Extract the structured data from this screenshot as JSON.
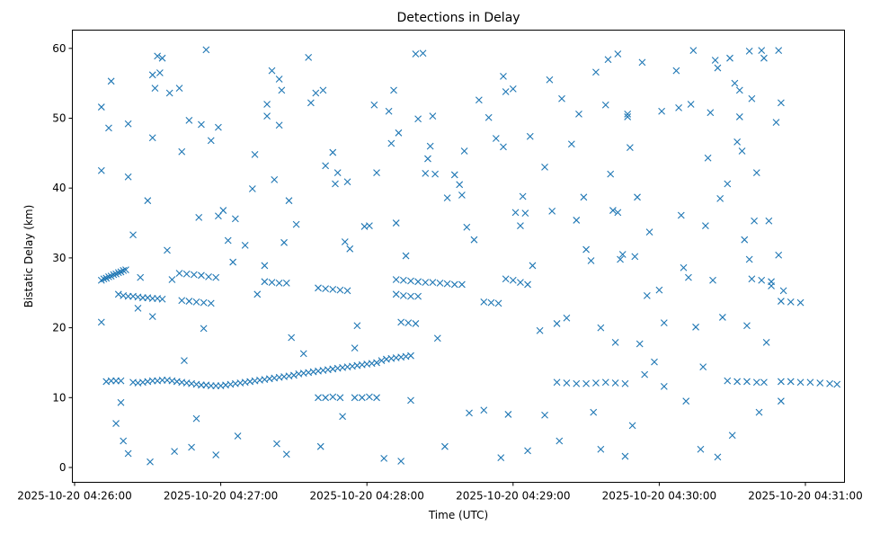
{
  "chart_data": {
    "type": "scatter",
    "title": "Detections in Delay",
    "xlabel": "Time (UTC)",
    "ylabel": "Bistatic Delay (km)",
    "x_unit": "seconds after 2025-10-20 04:26:00",
    "xlim": [
      -1,
      320
    ],
    "ylim": [
      -2.2,
      62.5
    ],
    "grid": false,
    "marker": "x",
    "color": "#1f77b4",
    "x_ticks": [
      {
        "value": 0,
        "label": "2025-10-20 04:26:00"
      },
      {
        "value": 60,
        "label": "2025-10-20 04:27:00"
      },
      {
        "value": 120,
        "label": "2025-10-20 04:28:00"
      },
      {
        "value": 180,
        "label": "2025-10-20 04:29:00"
      },
      {
        "value": 240,
        "label": "2025-10-20 04:30:00"
      },
      {
        "value": 300,
        "label": "2025-10-20 04:31:00"
      }
    ],
    "y_ticks": [
      {
        "value": 0,
        "label": "0"
      },
      {
        "value": 10,
        "label": "10"
      },
      {
        "value": 20,
        "label": "20"
      },
      {
        "value": 30,
        "label": "30"
      },
      {
        "value": 40,
        "label": "40"
      },
      {
        "value": 50,
        "label": "50"
      },
      {
        "value": 60,
        "label": "60"
      }
    ],
    "points": [
      [
        11,
        26.8
      ],
      [
        12,
        27
      ],
      [
        13,
        27.1
      ],
      [
        14,
        27.3
      ],
      [
        15,
        27.4
      ],
      [
        16,
        27.6
      ],
      [
        17,
        27.7
      ],
      [
        18,
        27.9
      ],
      [
        19,
        28
      ],
      [
        20,
        28.2
      ],
      [
        21,
        28.3
      ],
      [
        18,
        24.8
      ],
      [
        20,
        24.6
      ],
      [
        22,
        24.5
      ],
      [
        24,
        24.5
      ],
      [
        26,
        24.4
      ],
      [
        28,
        24.3
      ],
      [
        30,
        24.3
      ],
      [
        32,
        24.2
      ],
      [
        34,
        24.2
      ],
      [
        36,
        24.1
      ],
      [
        13,
        12.3
      ],
      [
        15,
        12.4
      ],
      [
        17,
        12.4
      ],
      [
        19,
        12.4
      ],
      [
        24,
        12.2
      ],
      [
        26,
        12.1
      ],
      [
        28,
        12.2
      ],
      [
        30,
        12.3
      ],
      [
        32,
        12.4
      ],
      [
        34,
        12.4
      ],
      [
        36,
        12.5
      ],
      [
        38,
        12.5
      ],
      [
        40,
        12.4
      ],
      [
        42,
        12.3
      ],
      [
        44,
        12.2
      ],
      [
        46,
        12.1
      ],
      [
        48,
        12
      ],
      [
        50,
        11.9
      ],
      [
        52,
        11.8
      ],
      [
        54,
        11.8
      ],
      [
        56,
        11.7
      ],
      [
        58,
        11.7
      ],
      [
        60,
        11.7
      ],
      [
        62,
        11.8
      ],
      [
        64,
        11.9
      ],
      [
        66,
        12
      ],
      [
        68,
        12.1
      ],
      [
        70,
        12.2
      ],
      [
        72,
        12.3
      ],
      [
        74,
        12.4
      ],
      [
        76,
        12.5
      ],
      [
        78,
        12.6
      ],
      [
        80,
        12.7
      ],
      [
        82,
        12.8
      ],
      [
        84,
        12.9
      ],
      [
        86,
        13
      ],
      [
        88,
        13.1
      ],
      [
        90,
        13.2
      ],
      [
        92,
        13.4
      ],
      [
        94,
        13.5
      ],
      [
        96,
        13.6
      ],
      [
        98,
        13.7
      ],
      [
        100,
        13.8
      ],
      [
        102,
        13.9
      ],
      [
        104,
        14
      ],
      [
        106,
        14.1
      ],
      [
        108,
        14.2
      ],
      [
        110,
        14.3
      ],
      [
        112,
        14.4
      ],
      [
        114,
        14.5
      ],
      [
        116,
        14.6
      ],
      [
        118,
        14.7
      ],
      [
        120,
        14.8
      ],
      [
        122,
        14.9
      ],
      [
        124,
        15
      ],
      [
        126,
        15.3
      ],
      [
        128,
        15.5
      ],
      [
        130,
        15.6
      ],
      [
        132,
        15.7
      ],
      [
        134,
        15.8
      ],
      [
        136,
        15.9
      ],
      [
        138,
        16
      ],
      [
        43,
        27.8
      ],
      [
        46,
        27.7
      ],
      [
        49,
        27.6
      ],
      [
        52,
        27.5
      ],
      [
        55,
        27.3
      ],
      [
        58,
        27.2
      ],
      [
        44,
        23.9
      ],
      [
        47,
        23.8
      ],
      [
        50,
        23.7
      ],
      [
        53,
        23.6
      ],
      [
        56,
        23.5
      ],
      [
        78,
        26.6
      ],
      [
        81,
        26.5
      ],
      [
        84,
        26.4
      ],
      [
        87,
        26.4
      ],
      [
        100,
        25.7
      ],
      [
        103,
        25.6
      ],
      [
        106,
        25.5
      ],
      [
        109,
        25.4
      ],
      [
        112,
        25.3
      ],
      [
        100,
        10
      ],
      [
        103,
        10
      ],
      [
        106,
        10.1
      ],
      [
        109,
        10
      ],
      [
        115,
        10
      ],
      [
        118,
        10
      ],
      [
        121,
        10.1
      ],
      [
        124,
        10
      ],
      [
        132,
        26.9
      ],
      [
        135,
        26.8
      ],
      [
        138,
        26.7
      ],
      [
        141,
        26.6
      ],
      [
        144,
        26.5
      ],
      [
        147,
        26.5
      ],
      [
        150,
        26.4
      ],
      [
        153,
        26.3
      ],
      [
        156,
        26.2
      ],
      [
        159,
        26.2
      ],
      [
        132,
        24.8
      ],
      [
        135,
        24.6
      ],
      [
        138,
        24.5
      ],
      [
        141,
        24.5
      ],
      [
        134,
        20.8
      ],
      [
        137,
        20.7
      ],
      [
        140,
        20.6
      ],
      [
        168,
        23.7
      ],
      [
        171,
        23.6
      ],
      [
        174,
        23.5
      ],
      [
        177,
        27
      ],
      [
        180,
        26.8
      ],
      [
        183,
        26.5
      ],
      [
        186,
        26.2
      ],
      [
        198,
        12.2
      ],
      [
        202,
        12.1
      ],
      [
        206,
        12
      ],
      [
        210,
        12
      ],
      [
        214,
        12.1
      ],
      [
        218,
        12.2
      ],
      [
        222,
        12.1
      ],
      [
        226,
        12
      ],
      [
        268,
        12.4
      ],
      [
        272,
        12.3
      ],
      [
        276,
        12.3
      ],
      [
        280,
        12.2
      ],
      [
        283,
        12.2
      ],
      [
        290,
        12.3
      ],
      [
        294,
        12.3
      ],
      [
        298,
        12.2
      ],
      [
        302,
        12.2
      ],
      [
        306,
        12.1
      ],
      [
        310,
        12
      ],
      [
        313,
        11.9
      ],
      [
        290,
        23.8
      ],
      [
        294,
        23.7
      ],
      [
        298,
        23.6
      ],
      [
        278,
        27
      ],
      [
        282,
        26.8
      ],
      [
        286,
        26.6
      ],
      [
        11,
        51.6
      ],
      [
        11,
        42.5
      ],
      [
        11,
        20.8
      ],
      [
        14,
        48.6
      ],
      [
        15,
        55.3
      ],
      [
        17,
        6.3
      ],
      [
        19,
        9.3
      ],
      [
        20,
        3.8
      ],
      [
        22,
        49.2
      ],
      [
        22,
        41.6
      ],
      [
        22,
        2
      ],
      [
        24,
        33.3
      ],
      [
        26,
        22.8
      ],
      [
        27,
        27.2
      ],
      [
        30,
        38.2
      ],
      [
        31,
        0.8
      ],
      [
        32,
        56.2
      ],
      [
        32,
        47.2
      ],
      [
        32,
        21.6
      ],
      [
        33,
        54.3
      ],
      [
        34,
        58.9
      ],
      [
        35,
        56.5
      ],
      [
        36,
        58.6
      ],
      [
        38,
        31.1
      ],
      [
        39,
        53.6
      ],
      [
        40,
        26.9
      ],
      [
        41,
        2.3
      ],
      [
        43,
        54.3
      ],
      [
        44,
        45.2
      ],
      [
        45,
        15.3
      ],
      [
        47,
        49.7
      ],
      [
        48,
        2.9
      ],
      [
        50,
        7
      ],
      [
        51,
        35.8
      ],
      [
        52,
        49.1
      ],
      [
        53,
        19.9
      ],
      [
        54,
        59.8
      ],
      [
        56,
        46.8
      ],
      [
        58,
        1.8
      ],
      [
        59,
        48.7
      ],
      [
        59,
        36
      ],
      [
        61,
        36.8
      ],
      [
        63,
        32.5
      ],
      [
        65,
        29.4
      ],
      [
        66,
        35.6
      ],
      [
        67,
        4.5
      ],
      [
        70,
        31.8
      ],
      [
        73,
        39.9
      ],
      [
        74,
        44.8
      ],
      [
        75,
        24.8
      ],
      [
        78,
        28.9
      ],
      [
        79,
        50.3
      ],
      [
        79,
        52
      ],
      [
        81,
        56.8
      ],
      [
        82,
        41.2
      ],
      [
        83,
        3.4
      ],
      [
        84,
        49
      ],
      [
        84,
        55.6
      ],
      [
        85,
        54
      ],
      [
        86,
        32.2
      ],
      [
        87,
        1.9
      ],
      [
        88,
        38.2
      ],
      [
        89,
        18.6
      ],
      [
        91,
        34.8
      ],
      [
        94,
        16.3
      ],
      [
        96,
        58.7
      ],
      [
        97,
        52.2
      ],
      [
        99,
        53.6
      ],
      [
        101,
        3
      ],
      [
        102,
        54
      ],
      [
        103,
        43.2
      ],
      [
        106,
        45.1
      ],
      [
        107,
        40.6
      ],
      [
        108,
        42.2
      ],
      [
        110,
        7.3
      ],
      [
        111,
        32.3
      ],
      [
        112,
        40.9
      ],
      [
        113,
        31.3
      ],
      [
        115,
        17.1
      ],
      [
        116,
        20.3
      ],
      [
        119,
        34.5
      ],
      [
        121,
        34.6
      ],
      [
        123,
        51.9
      ],
      [
        124,
        42.2
      ],
      [
        127,
        1.3
      ],
      [
        129,
        51
      ],
      [
        130,
        46.4
      ],
      [
        131,
        54
      ],
      [
        132,
        35
      ],
      [
        133,
        47.9
      ],
      [
        134,
        0.9
      ],
      [
        136,
        30.3
      ],
      [
        138,
        9.6
      ],
      [
        140,
        59.2
      ],
      [
        141,
        49.9
      ],
      [
        143,
        59.3
      ],
      [
        144,
        42.1
      ],
      [
        145,
        44.2
      ],
      [
        146,
        46
      ],
      [
        147,
        50.3
      ],
      [
        148,
        42
      ],
      [
        149,
        18.5
      ],
      [
        152,
        3
      ],
      [
        153,
        38.6
      ],
      [
        156,
        41.9
      ],
      [
        158,
        40.5
      ],
      [
        159,
        39
      ],
      [
        160,
        45.3
      ],
      [
        161,
        34.4
      ],
      [
        162,
        7.8
      ],
      [
        164,
        32.6
      ],
      [
        166,
        52.6
      ],
      [
        168,
        8.2
      ],
      [
        170,
        50.1
      ],
      [
        173,
        47.1
      ],
      [
        175,
        1.4
      ],
      [
        176,
        45.9
      ],
      [
        176,
        56
      ],
      [
        177,
        53.8
      ],
      [
        178,
        7.6
      ],
      [
        180,
        54.2
      ],
      [
        181,
        36.5
      ],
      [
        183,
        34.6
      ],
      [
        184,
        38.8
      ],
      [
        185,
        36.4
      ],
      [
        186,
        2.4
      ],
      [
        187,
        47.4
      ],
      [
        188,
        28.9
      ],
      [
        191,
        19.6
      ],
      [
        193,
        43
      ],
      [
        193,
        7.5
      ],
      [
        195,
        55.5
      ],
      [
        196,
        36.7
      ],
      [
        198,
        20.6
      ],
      [
        199,
        3.8
      ],
      [
        200,
        52.8
      ],
      [
        202,
        21.4
      ],
      [
        204,
        46.3
      ],
      [
        206,
        35.4
      ],
      [
        207,
        50.6
      ],
      [
        209,
        38.7
      ],
      [
        210,
        31.2
      ],
      [
        212,
        29.6
      ],
      [
        213,
        7.9
      ],
      [
        214,
        56.6
      ],
      [
        216,
        2.6
      ],
      [
        216,
        20
      ],
      [
        218,
        51.9
      ],
      [
        219,
        58.4
      ],
      [
        220,
        42
      ],
      [
        221,
        36.8
      ],
      [
        222,
        17.9
      ],
      [
        223,
        59.2
      ],
      [
        223,
        36.5
      ],
      [
        224,
        29.8
      ],
      [
        225,
        30.5
      ],
      [
        226,
        1.6
      ],
      [
        227,
        50.6
      ],
      [
        227,
        50.2
      ],
      [
        228,
        45.8
      ],
      [
        229,
        6
      ],
      [
        230,
        30.2
      ],
      [
        231,
        38.7
      ],
      [
        232,
        17.7
      ],
      [
        233,
        58
      ],
      [
        234,
        13.3
      ],
      [
        235,
        24.6
      ],
      [
        236,
        33.7
      ],
      [
        238,
        15.1
      ],
      [
        240,
        25.4
      ],
      [
        241,
        51
      ],
      [
        242,
        20.7
      ],
      [
        242,
        11.6
      ],
      [
        247,
        56.8
      ],
      [
        248,
        51.5
      ],
      [
        249,
        36.1
      ],
      [
        250,
        28.6
      ],
      [
        251,
        9.5
      ],
      [
        252,
        27.2
      ],
      [
        253,
        52
      ],
      [
        254,
        59.7
      ],
      [
        255,
        20.1
      ],
      [
        257,
        2.6
      ],
      [
        258,
        14.4
      ],
      [
        259,
        34.6
      ],
      [
        260,
        44.3
      ],
      [
        261,
        50.8
      ],
      [
        262,
        26.8
      ],
      [
        263,
        58.3
      ],
      [
        264,
        1.5
      ],
      [
        264,
        57.2
      ],
      [
        265,
        38.5
      ],
      [
        266,
        21.5
      ],
      [
        268,
        40.6
      ],
      [
        269,
        58.6
      ],
      [
        270,
        4.6
      ],
      [
        271,
        55
      ],
      [
        272,
        46.6
      ],
      [
        273,
        54
      ],
      [
        273,
        50.2
      ],
      [
        274,
        45.3
      ],
      [
        275,
        32.6
      ],
      [
        276,
        20.3
      ],
      [
        277,
        59.6
      ],
      [
        277,
        29.8
      ],
      [
        278,
        52.8
      ],
      [
        279,
        35.3
      ],
      [
        280,
        42.2
      ],
      [
        281,
        7.9
      ],
      [
        282,
        59.7
      ],
      [
        283,
        58.6
      ],
      [
        284,
        17.9
      ],
      [
        285,
        35.3
      ],
      [
        286,
        26
      ],
      [
        288,
        49.4
      ],
      [
        289,
        59.7
      ],
      [
        289,
        30.4
      ],
      [
        290,
        52.2
      ],
      [
        290,
        9.5
      ],
      [
        291,
        25.3
      ]
    ]
  }
}
